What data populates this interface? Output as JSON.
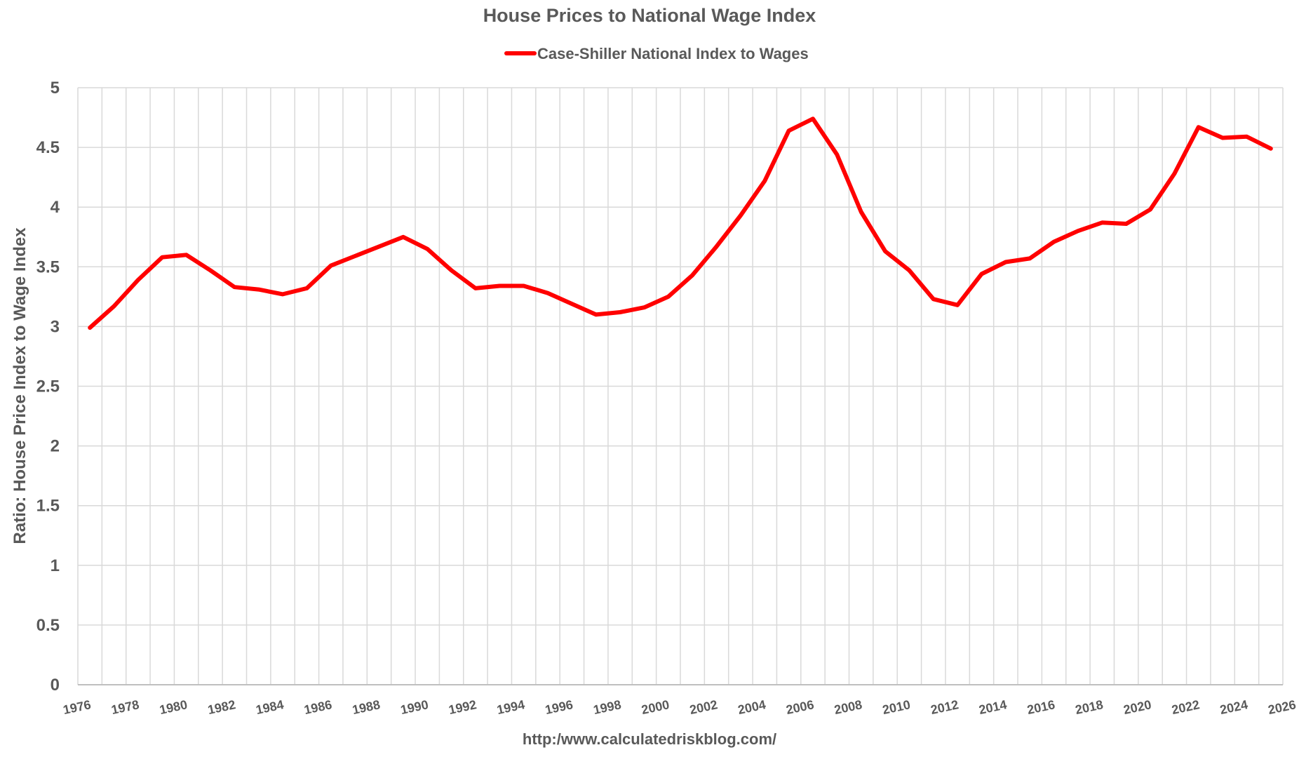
{
  "chart_data": {
    "type": "line",
    "title": "House Prices to National Wage Index",
    "xlabel": "",
    "ylabel": "Ratio: House Price Index to Wage Index",
    "source_note": "http:/www.calculatedriskblog.com/",
    "xlim": [
      1976,
      2026
    ],
    "ylim": [
      0,
      5
    ],
    "y_ticks": [
      "0",
      "0.5",
      "1",
      "1.5",
      "2",
      "2.5",
      "3",
      "3.5",
      "4",
      "4.5",
      "5"
    ],
    "x_ticks": [
      "1976",
      "1978",
      "1980",
      "1982",
      "1984",
      "1986",
      "1988",
      "1990",
      "1992",
      "1994",
      "1996",
      "1998",
      "2000",
      "2002",
      "2004",
      "2006",
      "2008",
      "2010",
      "2012",
      "2014",
      "2016",
      "2018",
      "2020",
      "2022",
      "2024",
      "2026"
    ],
    "grid": true,
    "legend_position": "top-center",
    "series": [
      {
        "name": "Case-Shiller National Index to Wages",
        "color": "#ff0000",
        "x": [
          1976.5,
          1977.5,
          1978.5,
          1979.5,
          1980.5,
          1981.5,
          1982.5,
          1983.5,
          1984.5,
          1985.5,
          1986.5,
          1987.5,
          1988.5,
          1989.5,
          1990.5,
          1991.5,
          1992.5,
          1993.5,
          1994.5,
          1995.5,
          1996.5,
          1997.5,
          1998.5,
          1999.5,
          2000.5,
          2001.5,
          2002.5,
          2003.5,
          2004.5,
          2005.5,
          2006.5,
          2007.5,
          2008.5,
          2009.5,
          2010.5,
          2011.5,
          2012.5,
          2013.5,
          2014.5,
          2015.5,
          2016.5,
          2017.5,
          2018.5,
          2019.5,
          2020.5,
          2021.5,
          2022.5,
          2023.5,
          2024.5,
          2025.5
        ],
        "values": [
          2.99,
          3.17,
          3.39,
          3.58,
          3.6,
          3.47,
          3.33,
          3.31,
          3.27,
          3.32,
          3.51,
          3.59,
          3.67,
          3.75,
          3.65,
          3.47,
          3.32,
          3.34,
          3.34,
          3.28,
          3.19,
          3.1,
          3.12,
          3.16,
          3.25,
          3.43,
          3.67,
          3.93,
          4.22,
          4.64,
          4.74,
          4.44,
          3.96,
          3.63,
          3.47,
          3.23,
          3.18,
          3.44,
          3.54,
          3.57,
          3.71,
          3.8,
          3.87,
          3.86,
          3.98,
          4.28,
          4.67,
          4.58,
          4.59,
          4.49
        ]
      }
    ]
  }
}
